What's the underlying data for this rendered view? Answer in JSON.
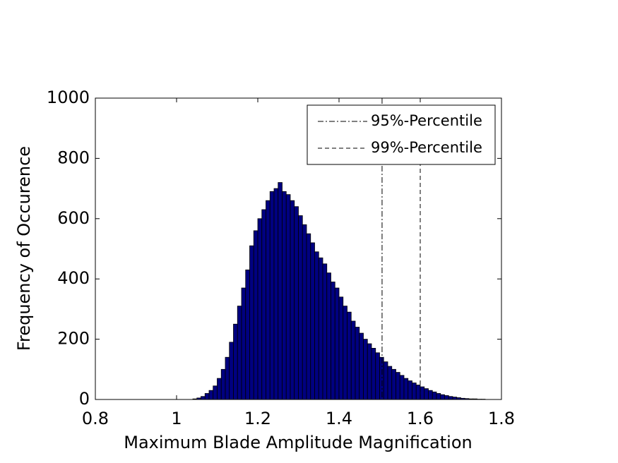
{
  "chart_data": {
    "type": "histogram",
    "xlabel": "Maximum Blade Amplitude Magnification",
    "ylabel": "Frequency of Occurence",
    "bins": [
      1.04,
      1.05,
      1.06,
      1.07,
      1.08,
      1.09,
      1.1,
      1.11,
      1.12,
      1.13,
      1.14,
      1.15,
      1.16,
      1.17,
      1.18,
      1.19,
      1.2,
      1.21,
      1.22,
      1.23,
      1.24,
      1.25,
      1.26,
      1.27,
      1.28,
      1.29,
      1.3,
      1.31,
      1.32,
      1.33,
      1.34,
      1.35,
      1.36,
      1.37,
      1.38,
      1.39,
      1.4,
      1.41,
      1.42,
      1.43,
      1.44,
      1.45,
      1.46,
      1.47,
      1.48,
      1.49,
      1.5,
      1.51,
      1.52,
      1.53,
      1.54,
      1.55,
      1.56,
      1.57,
      1.58,
      1.59,
      1.6,
      1.61,
      1.62,
      1.63,
      1.64,
      1.65,
      1.66,
      1.67,
      1.68,
      1.69,
      1.7,
      1.71,
      1.72,
      1.73,
      1.74,
      1.75,
      1.76
    ],
    "counts": [
      2,
      5,
      10,
      20,
      30,
      45,
      70,
      100,
      140,
      190,
      250,
      310,
      370,
      430,
      510,
      560,
      600,
      630,
      660,
      690,
      700,
      720,
      690,
      680,
      660,
      640,
      610,
      580,
      550,
      520,
      490,
      470,
      450,
      420,
      390,
      370,
      340,
      310,
      290,
      260,
      240,
      220,
      200,
      185,
      170,
      155,
      140,
      125,
      110,
      100,
      90,
      80,
      70,
      62,
      55,
      48,
      42,
      36,
      30,
      25,
      20,
      16,
      13,
      10,
      8,
      6,
      4,
      3,
      2,
      2,
      1,
      1
    ],
    "color": "#000080",
    "percentiles": [
      {
        "name": "95%-Percentile",
        "value": 1.506,
        "dash": "8 3 2 3"
      },
      {
        "name": "99%-Percentile",
        "value": 1.6,
        "dash": "6 4"
      }
    ],
    "xlim": [
      0.8,
      1.8
    ],
    "xticks": [
      0.8,
      1,
      1.2,
      1.4,
      1.6,
      1.8
    ],
    "ylim": [
      0,
      1000
    ],
    "yticks": [
      0,
      200,
      400,
      600,
      800,
      1000
    ],
    "legend": "upper right"
  }
}
